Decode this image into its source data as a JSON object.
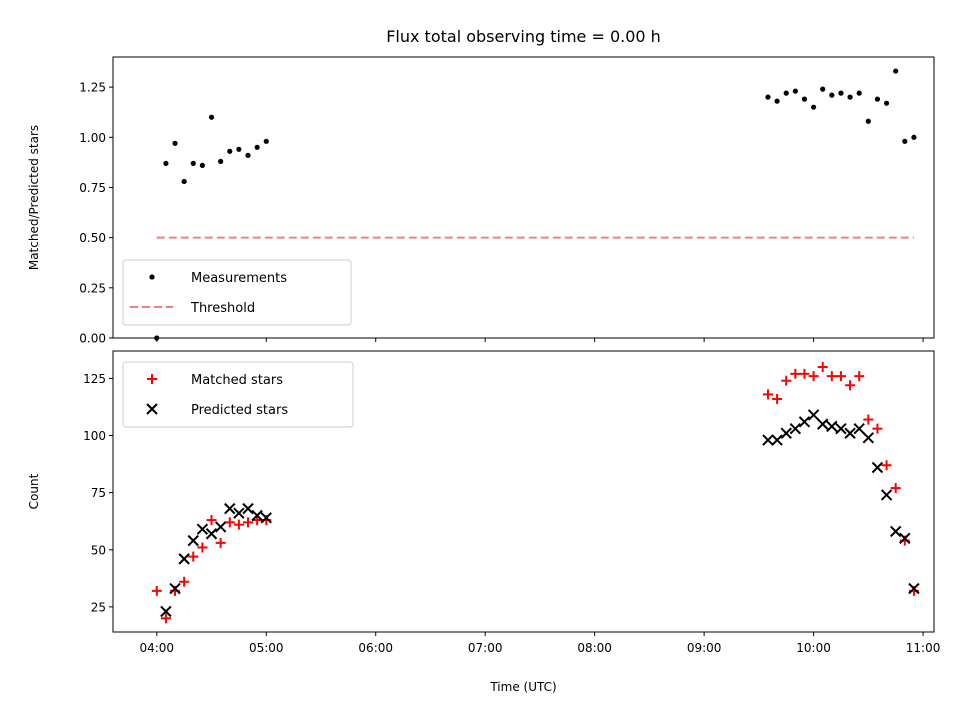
{
  "chart_data": [
    {
      "type": "scatter",
      "title": "Flux total observing time = 0.00 h",
      "xlabel": "",
      "ylabel": "Matched/Predicted stars",
      "xlim": [
        "03:36",
        "11:06"
      ],
      "ylim": [
        0,
        1.4
      ],
      "yticks": [
        "0.00",
        "0.25",
        "0.50",
        "0.75",
        "1.00",
        "1.25"
      ],
      "legend_position": "lower-left",
      "series": [
        {
          "name": "Measurements",
          "marker": "dot",
          "color": "#000000",
          "x": [
            "04:00",
            "04:05",
            "04:10",
            "04:15",
            "04:20",
            "04:25",
            "04:30",
            "04:35",
            "04:40",
            "04:45",
            "04:50",
            "04:55",
            "05:00",
            "09:35",
            "09:40",
            "09:45",
            "09:50",
            "09:55",
            "10:00",
            "10:05",
            "10:10",
            "10:15",
            "10:20",
            "10:25",
            "10:30",
            "10:35",
            "10:40",
            "10:45",
            "10:50",
            "10:55"
          ],
          "y": [
            0.0,
            0.87,
            0.97,
            0.78,
            0.87,
            0.86,
            1.1,
            0.88,
            0.93,
            0.94,
            0.91,
            0.95,
            0.98,
            1.2,
            1.18,
            1.22,
            1.23,
            1.19,
            1.15,
            1.24,
            1.21,
            1.22,
            1.2,
            1.22,
            1.08,
            1.19,
            1.17,
            1.33,
            0.98,
            1.0
          ]
        },
        {
          "name": "Threshold",
          "marker": "dashed-line",
          "color": "#f08080",
          "x": [
            "04:00",
            "10:55"
          ],
          "y": [
            0.5,
            0.5
          ]
        }
      ]
    },
    {
      "type": "scatter",
      "title": "",
      "xlabel": "Time (UTC)",
      "ylabel": "Count",
      "xlim": [
        "03:36",
        "11:06"
      ],
      "ylim": [
        14,
        137
      ],
      "xticks": [
        "04:00",
        "05:00",
        "06:00",
        "07:00",
        "08:00",
        "09:00",
        "10:00",
        "11:00"
      ],
      "yticks": [
        "25",
        "50",
        "75",
        "100",
        "125"
      ],
      "legend_position": "upper-left",
      "series": [
        {
          "name": "Matched stars",
          "marker": "plus",
          "color": "#ff0000",
          "x": [
            "04:00",
            "04:05",
            "04:10",
            "04:15",
            "04:20",
            "04:25",
            "04:30",
            "04:35",
            "04:40",
            "04:45",
            "04:50",
            "04:55",
            "05:00",
            "09:35",
            "09:40",
            "09:45",
            "09:50",
            "09:55",
            "10:00",
            "10:05",
            "10:10",
            "10:15",
            "10:20",
            "10:25",
            "10:30",
            "10:35",
            "10:40",
            "10:45",
            "10:50",
            "10:55"
          ],
          "y": [
            32,
            20,
            32,
            36,
            47,
            51,
            63,
            53,
            62,
            61,
            62,
            63,
            63,
            118,
            116,
            124,
            127,
            127,
            126,
            130,
            126,
            126,
            122,
            126,
            107,
            103,
            87,
            77,
            54,
            32
          ]
        },
        {
          "name": "Predicted stars",
          "marker": "x",
          "color": "#000000",
          "x": [
            "04:05",
            "04:10",
            "04:15",
            "04:20",
            "04:25",
            "04:30",
            "04:35",
            "04:40",
            "04:45",
            "04:50",
            "04:55",
            "05:00",
            "09:35",
            "09:40",
            "09:45",
            "09:50",
            "09:55",
            "10:00",
            "10:05",
            "10:10",
            "10:15",
            "10:20",
            "10:25",
            "10:30",
            "10:35",
            "10:40",
            "10:45",
            "10:50",
            "10:55"
          ],
          "y": [
            23,
            33,
            46,
            54,
            59,
            57,
            60,
            68,
            66,
            68,
            65,
            64,
            98,
            98,
            101,
            103,
            106,
            109,
            105,
            104,
            103,
            101,
            103,
            99,
            86,
            74,
            58,
            55,
            33
          ]
        }
      ]
    }
  ]
}
